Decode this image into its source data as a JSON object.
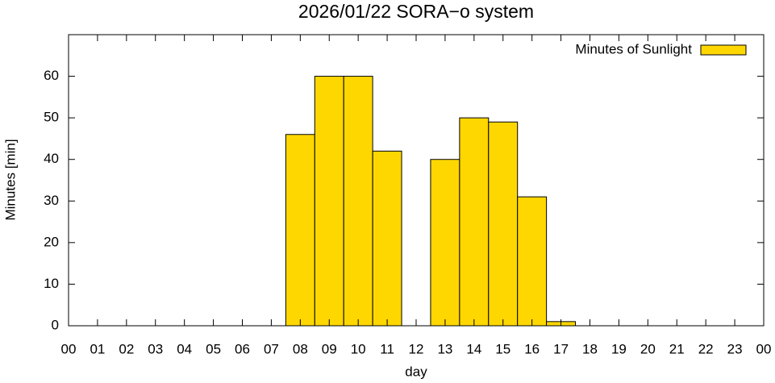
{
  "chart_data": {
    "type": "bar",
    "title": "2026/01/22 SORA−o system",
    "x_label": "day",
    "y_label": "Minutes [min]",
    "x": [
      0,
      1,
      2,
      3,
      4,
      5,
      6,
      7,
      8,
      9,
      10,
      11,
      12,
      13,
      14,
      15,
      16,
      17,
      18,
      19,
      20,
      21,
      22,
      23
    ],
    "series": [
      {
        "name": "Minutes of Sunlight",
        "color": "#ffd700",
        "values": [
          0,
          0,
          0,
          0,
          0,
          0,
          0,
          0,
          46,
          60,
          60,
          42,
          0,
          40,
          50,
          49,
          31,
          1,
          0,
          0,
          0,
          0,
          0,
          0
        ]
      }
    ],
    "xlim": [
      0,
      24
    ],
    "xticks": [
      {
        "value": 0,
        "label": "00"
      },
      {
        "value": 1,
        "label": "01"
      },
      {
        "value": 2,
        "label": "02"
      },
      {
        "value": 3,
        "label": "03"
      },
      {
        "value": 4,
        "label": "04"
      },
      {
        "value": 5,
        "label": "05"
      },
      {
        "value": 6,
        "label": "06"
      },
      {
        "value": 7,
        "label": "07"
      },
      {
        "value": 8,
        "label": "08"
      },
      {
        "value": 9,
        "label": "09"
      },
      {
        "value": 10,
        "label": "10"
      },
      {
        "value": 11,
        "label": "11"
      },
      {
        "value": 12,
        "label": "12"
      },
      {
        "value": 13,
        "label": "13"
      },
      {
        "value": 14,
        "label": "14"
      },
      {
        "value": 15,
        "label": "15"
      },
      {
        "value": 16,
        "label": "16"
      },
      {
        "value": 17,
        "label": "17"
      },
      {
        "value": 18,
        "label": "18"
      },
      {
        "value": 19,
        "label": "19"
      },
      {
        "value": 20,
        "label": "20"
      },
      {
        "value": 21,
        "label": "21"
      },
      {
        "value": 22,
        "label": "22"
      },
      {
        "value": 23,
        "label": "23"
      },
      {
        "value": 24,
        "label": "00"
      }
    ],
    "ylim": [
      0,
      70
    ],
    "yticks": [
      0,
      10,
      20,
      30,
      40,
      50,
      60
    ],
    "legend": "top-right"
  }
}
